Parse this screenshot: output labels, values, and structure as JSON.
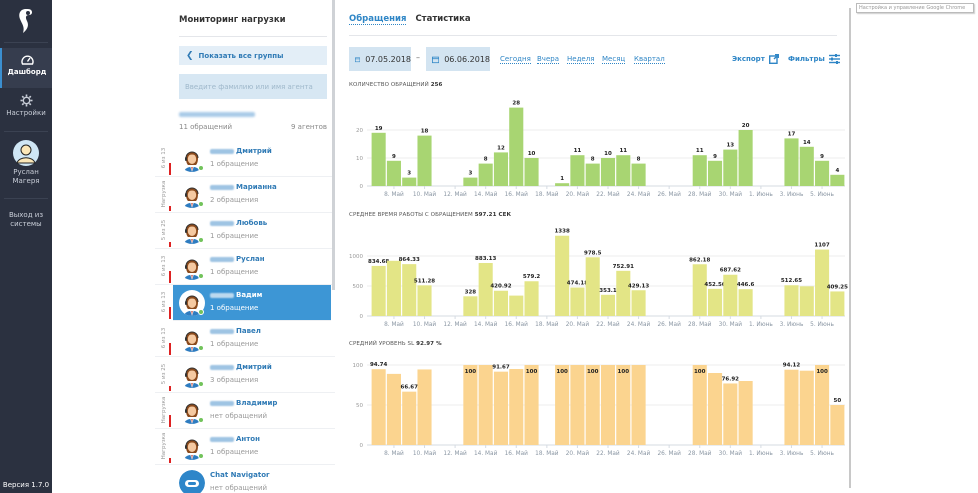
{
  "nav": {
    "logo_icon": "rostelecom-logo-icon",
    "items": [
      {
        "label": "Дашборд",
        "icon": "speedometer-icon",
        "active": true
      },
      {
        "label": "Настройки",
        "icon": "gear-icon",
        "active": false
      }
    ],
    "user": {
      "first_name": "Руслан",
      "last_name": "Магеря",
      "icon": "user-avatar-icon"
    },
    "logout": {
      "line1": "Выход из",
      "line2": "системы"
    },
    "version": "Версия 1.7.0"
  },
  "panel": {
    "title": "Мониторинг нагрузки",
    "show_all_groups": "Показать все группы",
    "search_placeholder": "Введите фамилию или имя агента",
    "group": {
      "requests": "11 обращений",
      "agents": "9 агентов"
    },
    "agents": [
      {
        "side": "6 из 13",
        "name": "Дмитрий",
        "redacted_prefix": true,
        "star": true,
        "count": "1 обращение",
        "selected": false,
        "load": 0.4
      },
      {
        "side": "Нагрузка",
        "name": "Марианна",
        "redacted_prefix": true,
        "star": true,
        "count": "2 обращения",
        "selected": false,
        "load": 0.15
      },
      {
        "side": "5 из 25",
        "name": "Любовь",
        "redacted_prefix": true,
        "star": true,
        "count": "1 обращение",
        "selected": false,
        "load": 0.15
      },
      {
        "side": "6 из 13",
        "name": "Руслан",
        "redacted_prefix": true,
        "star": true,
        "count": "1 обращение",
        "selected": false,
        "load": 0.4
      },
      {
        "side": "6 из 13",
        "name": "Вадим",
        "redacted_prefix": true,
        "star": false,
        "count": "1 обращение",
        "selected": true,
        "load": 0.4
      },
      {
        "side": "6 из 13",
        "name": "Павел",
        "redacted_prefix": true,
        "star": false,
        "count": "1 обращение",
        "selected": false,
        "load": 0.4
      },
      {
        "side": "5 из 25",
        "name": "Дмитрий",
        "redacted_prefix": true,
        "star": false,
        "count": "3 обращения",
        "selected": false,
        "load": 0.15
      },
      {
        "side": "Нагрузка",
        "name": "Владимир",
        "redacted_prefix": true,
        "star": true,
        "count": "нет обращений",
        "selected": false,
        "load": 0.4
      },
      {
        "side": "Нагрузка",
        "name": "Антон",
        "redacted_prefix": true,
        "star": false,
        "count": "1 обращение",
        "selected": false,
        "load": 0.15
      },
      {
        "side": "",
        "name": "Chat Navigator",
        "redacted_prefix": false,
        "star": false,
        "count": "нет обращений",
        "selected": false,
        "bot": true,
        "load": 0
      }
    ]
  },
  "main": {
    "tabs": [
      {
        "label": "Обращения",
        "active": true
      },
      {
        "label": "Статистика",
        "active": false
      }
    ],
    "date_from": "07.05.2018",
    "date_to": "06.06.2018",
    "date_separator": "–",
    "quick_ranges": [
      "Сегодня",
      "Вчера",
      "Неделя",
      "Месяц",
      "Квартал"
    ],
    "export_label": "Экспорт",
    "filters_label": "Фильтры"
  },
  "browser_tooltip": "Настройка и управление Google Chrome",
  "colors": {
    "accent": "#2f86c6",
    "nav_bg": "#2b3140",
    "selected_row": "#3d96d5",
    "chart1": "#a8d572",
    "chart2": "#e3e586",
    "chart3": "#fbd48f",
    "load_bar": "#dd2222"
  },
  "chart_data": [
    {
      "type": "bar",
      "title": "КОЛИЧЕСТВО ОБРАЩЕНИЙ",
      "title_value": "256",
      "x": [
        "7 May",
        "8 May",
        "9 May",
        "10 May",
        "11 May",
        "12 May",
        "13 May",
        "14 May",
        "15 May",
        "16 May",
        "17 May",
        "18 May",
        "19 May",
        "20 May",
        "21 May",
        "22 May",
        "23 May",
        "24 May",
        "25 May",
        "26 May",
        "27 May",
        "28 May",
        "29 May",
        "30 May",
        "31 May",
        "1 Jun",
        "2 Jun",
        "3 Jun",
        "4 Jun",
        "5 Jun",
        "6 Jun"
      ],
      "values": [
        19,
        9,
        3,
        18,
        0,
        0,
        3,
        8,
        12,
        28,
        10,
        0,
        1,
        11,
        8,
        10,
        11,
        8,
        0,
        0,
        0,
        11,
        9,
        13,
        20,
        0,
        0,
        17,
        14,
        9,
        4
      ],
      "labels": [
        "19",
        "9",
        "3",
        "18",
        null,
        null,
        "3",
        "8",
        "12",
        "28",
        "10",
        null,
        "1",
        "11",
        "8",
        "10",
        "11",
        "8",
        null,
        null,
        null,
        "11",
        "9",
        "13",
        "20",
        null,
        null,
        "17",
        "14",
        "9",
        "4"
      ],
      "tick_labels": [
        "8. Май",
        "10. Май",
        "12. Май",
        "14. Май",
        "16. Май",
        "18. Май",
        "20. Май",
        "22. Май",
        "24. Май",
        "26. Май",
        "28. Май",
        "30. Май",
        "1. Июнь",
        "3. Июнь",
        "5. Июнь"
      ],
      "yticks": [
        0,
        10,
        20
      ],
      "ylim": [
        0,
        30
      ],
      "grid": true
    },
    {
      "type": "bar",
      "title": "СРЕДНЕЕ ВРЕМЯ РАБОТЫ С ОБРАЩЕНИЕМ",
      "title_value": "597.21 СЕК",
      "x": [
        "7 May",
        "8 May",
        "9 May",
        "10 May",
        "11 May",
        "12 May",
        "13 May",
        "14 May",
        "15 May",
        "16 May",
        "17 May",
        "18 May",
        "19 May",
        "20 May",
        "21 May",
        "22 May",
        "23 May",
        "24 May",
        "25 May",
        "26 May",
        "27 May",
        "28 May",
        "29 May",
        "30 May",
        "31 May",
        "1 Jun",
        "2 Jun",
        "3 Jun",
        "4 Jun",
        "5 Jun",
        "6 Jun"
      ],
      "values": [
        834.68,
        920,
        864.33,
        511.28,
        0,
        0,
        328,
        883.13,
        420.92,
        340,
        579.2,
        0,
        1338,
        474.18,
        978.5,
        353.1,
        752.91,
        429.13,
        0,
        0,
        0,
        862.18,
        452.56,
        687.62,
        446.6,
        0,
        0,
        512.65,
        495,
        1107,
        409.25
      ],
      "labels": [
        "834.68",
        null,
        "864.33",
        "511.28",
        null,
        null,
        "328",
        "883.13",
        "420.92",
        null,
        "579.2",
        null,
        "1338",
        "474.18",
        "978.5",
        "353.1",
        "752.91",
        "429.13",
        null,
        null,
        null,
        "862.18",
        "452.56",
        "687.62",
        "446.6",
        null,
        null,
        "512.65",
        null,
        "1107",
        "409.25"
      ],
      "unlabeled_estimates_note": "8 May, 16 May and 4 Jun bars have no data label; values estimated from bar height",
      "tick_labels": [
        "8. Май",
        "10. Май",
        "12. Май",
        "14. Май",
        "16. Май",
        "18. Май",
        "20. Май",
        "22. Май",
        "24. Май",
        "26. Май",
        "28. Май",
        "30. Май",
        "1. Июнь",
        "3. Июнь",
        "5. Июнь"
      ],
      "yticks": [
        0,
        500,
        1000
      ],
      "ylim": [
        0,
        1400
      ],
      "grid": true
    },
    {
      "type": "bar",
      "title": "СРЕДНИЙ УРОВЕНЬ SL",
      "title_value": "92.97 %",
      "x": [
        "7 May",
        "8 May",
        "9 May",
        "10 May",
        "11 May",
        "12 May",
        "13 May",
        "14 May",
        "15 May",
        "16 May",
        "17 May",
        "18 May",
        "19 May",
        "20 May",
        "21 May",
        "22 May",
        "23 May",
        "24 May",
        "25 May",
        "26 May",
        "27 May",
        "28 May",
        "29 May",
        "30 May",
        "31 May",
        "1 Jun",
        "2 Jun",
        "3 Jun",
        "4 Jun",
        "5 Jun",
        "6 Jun"
      ],
      "values": [
        94.74,
        88.89,
        66.67,
        94.44,
        0,
        0,
        100,
        100,
        91.67,
        95,
        100,
        0,
        100,
        100,
        100,
        100,
        100,
        100,
        0,
        0,
        0,
        100,
        90,
        76.92,
        80,
        0,
        0,
        94.12,
        92.86,
        100,
        50
      ],
      "labels": [
        "94.74",
        null,
        "66.67",
        null,
        null,
        null,
        "100",
        null,
        "91.67",
        null,
        "100",
        null,
        "100",
        null,
        "100",
        null,
        "100",
        null,
        null,
        null,
        null,
        "100",
        null,
        "76.92",
        null,
        null,
        null,
        "94.12",
        null,
        "100",
        "50"
      ],
      "unlabeled_estimates_note": "bars without data labels are estimated from bar height",
      "tick_labels": [
        "8. Май",
        "10. Май",
        "12. Май",
        "14. Май",
        "16. Май",
        "18. Май",
        "20. Май",
        "22. Май",
        "24. Май",
        "26. Май",
        "28. Май",
        "30. Май",
        "1. Июнь",
        "3. Июнь",
        "5. Июнь"
      ],
      "yticks": [
        0,
        50,
        100
      ],
      "ylim": [
        0,
        105
      ],
      "grid": true
    }
  ]
}
